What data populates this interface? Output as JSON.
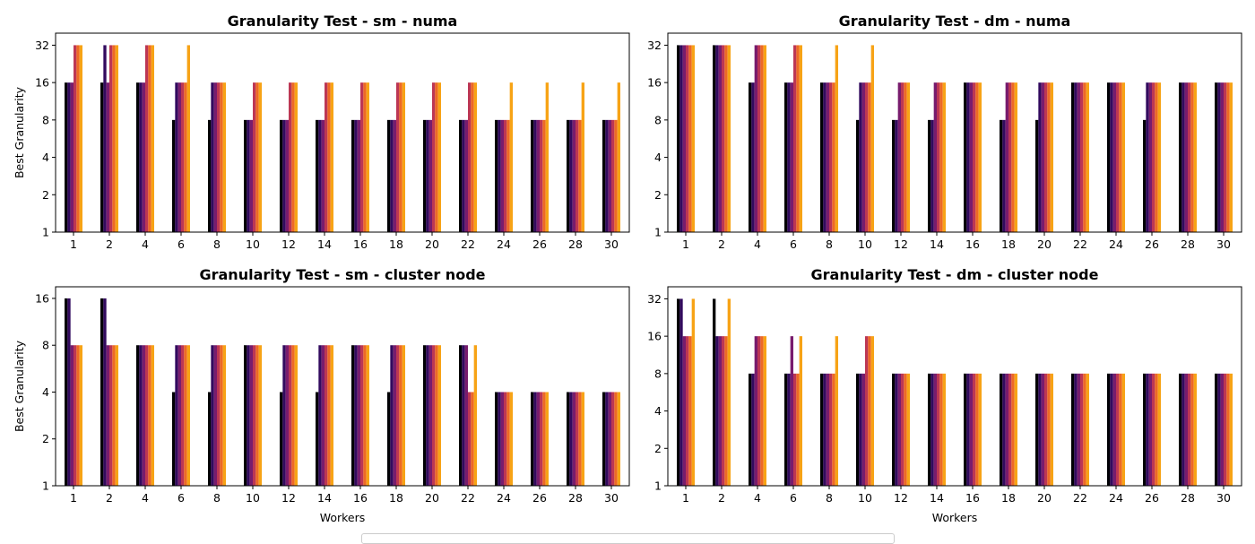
{
  "chart_data": [
    {
      "type": "bar",
      "title": "Granularity Test - sm - numa",
      "xlabel": "",
      "ylabel": "Best Granularity",
      "yscale": "log2",
      "ylim": [
        1,
        40
      ],
      "yticks": [
        1,
        2,
        4,
        8,
        16,
        32
      ],
      "categories": [
        "1",
        "2",
        "4",
        "6",
        "8",
        "10",
        "12",
        "14",
        "16",
        "18",
        "20",
        "22",
        "24",
        "26",
        "28",
        "30"
      ],
      "series": [
        {
          "values": [
            16,
            16,
            16,
            8,
            8,
            8,
            8,
            8,
            8,
            8,
            8,
            8,
            8,
            8,
            8,
            8
          ]
        },
        {
          "values": [
            16,
            32,
            16,
            16,
            16,
            8,
            8,
            8,
            8,
            8,
            8,
            8,
            8,
            8,
            8,
            8
          ]
        },
        {
          "values": [
            16,
            16,
            16,
            16,
            16,
            8,
            8,
            8,
            8,
            8,
            8,
            8,
            8,
            8,
            8,
            8
          ]
        },
        {
          "values": [
            32,
            32,
            32,
            16,
            16,
            16,
            16,
            16,
            16,
            16,
            16,
            16,
            8,
            8,
            8,
            8
          ]
        },
        {
          "values": [
            32,
            32,
            32,
            16,
            16,
            16,
            16,
            16,
            16,
            16,
            16,
            16,
            8,
            8,
            8,
            8
          ]
        },
        {
          "values": [
            32,
            32,
            32,
            32,
            16,
            16,
            16,
            16,
            16,
            16,
            16,
            16,
            16,
            16,
            16,
            16
          ]
        }
      ]
    },
    {
      "type": "bar",
      "title": "Granularity Test - dm - numa",
      "xlabel": "",
      "ylabel": "",
      "yscale": "log2",
      "ylim": [
        1,
        40
      ],
      "yticks": [
        1,
        2,
        4,
        8,
        16,
        32
      ],
      "categories": [
        "1",
        "2",
        "4",
        "6",
        "8",
        "10",
        "12",
        "14",
        "16",
        "18",
        "20",
        "22",
        "24",
        "26",
        "28",
        "30"
      ],
      "series": [
        {
          "values": [
            32,
            32,
            16,
            16,
            16,
            8,
            8,
            8,
            16,
            8,
            8,
            16,
            16,
            8,
            16,
            16
          ]
        },
        {
          "values": [
            32,
            32,
            16,
            16,
            16,
            16,
            8,
            8,
            16,
            8,
            16,
            16,
            16,
            16,
            16,
            16
          ]
        },
        {
          "values": [
            32,
            32,
            32,
            16,
            16,
            16,
            16,
            16,
            16,
            16,
            16,
            16,
            16,
            16,
            16,
            16
          ]
        },
        {
          "values": [
            32,
            32,
            32,
            32,
            16,
            16,
            16,
            16,
            16,
            16,
            16,
            16,
            16,
            16,
            16,
            16
          ]
        },
        {
          "values": [
            32,
            32,
            32,
            32,
            16,
            16,
            16,
            16,
            16,
            16,
            16,
            16,
            16,
            16,
            16,
            16
          ]
        },
        {
          "values": [
            32,
            32,
            32,
            32,
            32,
            32,
            16,
            16,
            16,
            16,
            16,
            16,
            16,
            16,
            16,
            16
          ]
        }
      ]
    },
    {
      "type": "bar",
      "title": "Granularity Test - sm - cluster node",
      "xlabel": "Workers",
      "ylabel": "Best Granularity",
      "yscale": "log2",
      "ylim": [
        1,
        19
      ],
      "yticks": [
        1,
        2,
        4,
        8,
        16
      ],
      "categories": [
        "1",
        "2",
        "4",
        "6",
        "8",
        "10",
        "12",
        "14",
        "16",
        "18",
        "20",
        "22",
        "24",
        "26",
        "28",
        "30"
      ],
      "series": [
        {
          "values": [
            16,
            16,
            8,
            4,
            4,
            8,
            4,
            4,
            8,
            4,
            8,
            8,
            4,
            4,
            4,
            4
          ]
        },
        {
          "values": [
            16,
            16,
            8,
            8,
            8,
            8,
            8,
            8,
            8,
            8,
            8,
            8,
            4,
            4,
            4,
            4
          ]
        },
        {
          "values": [
            8,
            8,
            8,
            8,
            8,
            8,
            8,
            8,
            8,
            8,
            8,
            8,
            4,
            4,
            4,
            4
          ]
        },
        {
          "values": [
            8,
            8,
            8,
            8,
            8,
            8,
            8,
            8,
            8,
            8,
            8,
            4,
            4,
            4,
            4,
            4
          ]
        },
        {
          "values": [
            8,
            8,
            8,
            8,
            8,
            8,
            8,
            8,
            8,
            8,
            8,
            4,
            4,
            4,
            4,
            4
          ]
        },
        {
          "values": [
            8,
            8,
            8,
            8,
            8,
            8,
            8,
            8,
            8,
            8,
            8,
            8,
            4,
            4,
            4,
            4
          ]
        }
      ]
    },
    {
      "type": "bar",
      "title": "Granularity Test - dm - cluster node",
      "xlabel": "Workers",
      "ylabel": "",
      "yscale": "log2",
      "ylim": [
        1,
        40
      ],
      "yticks": [
        1,
        2,
        4,
        8,
        16,
        32
      ],
      "categories": [
        "1",
        "2",
        "4",
        "6",
        "8",
        "10",
        "12",
        "14",
        "16",
        "18",
        "20",
        "22",
        "24",
        "26",
        "28",
        "30"
      ],
      "series": [
        {
          "values": [
            32,
            32,
            8,
            8,
            8,
            8,
            8,
            8,
            8,
            8,
            8,
            8,
            8,
            8,
            8,
            8
          ]
        },
        {
          "values": [
            32,
            16,
            8,
            8,
            8,
            8,
            8,
            8,
            8,
            8,
            8,
            8,
            8,
            8,
            8,
            8
          ]
        },
        {
          "values": [
            16,
            16,
            16,
            16,
            8,
            8,
            8,
            8,
            8,
            8,
            8,
            8,
            8,
            8,
            8,
            8
          ]
        },
        {
          "values": [
            16,
            16,
            16,
            8,
            8,
            16,
            8,
            8,
            8,
            8,
            8,
            8,
            8,
            8,
            8,
            8
          ]
        },
        {
          "values": [
            16,
            16,
            16,
            8,
            8,
            16,
            8,
            8,
            8,
            8,
            8,
            8,
            8,
            8,
            8,
            8
          ]
        },
        {
          "values": [
            32,
            32,
            16,
            16,
            16,
            16,
            8,
            8,
            8,
            8,
            8,
            8,
            8,
            8,
            8,
            8
          ]
        }
      ]
    }
  ],
  "colors": [
    "#000004",
    "#320a5e",
    "#781c6d",
    "#bc3754",
    "#ed6925",
    "#f7a316"
  ]
}
